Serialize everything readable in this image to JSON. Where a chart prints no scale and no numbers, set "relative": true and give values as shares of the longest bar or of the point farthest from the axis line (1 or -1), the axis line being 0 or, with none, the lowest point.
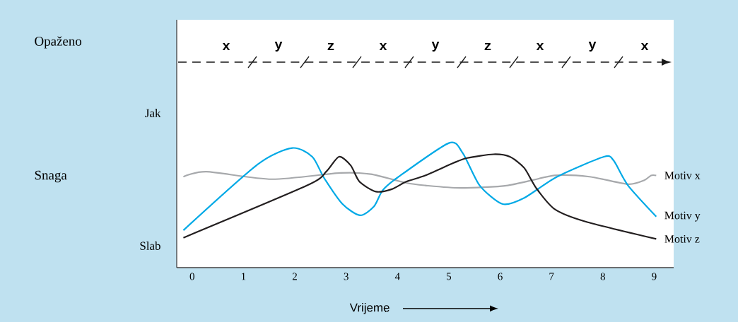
{
  "chart_data": {
    "type": "line",
    "relative": true,
    "xlabel": "Vrijeme",
    "xlim": [
      -0.3,
      9.38
    ],
    "xticks": [
      0,
      1,
      2,
      3,
      4,
      5,
      6,
      7,
      8,
      9
    ],
    "series": [
      {
        "name": "Motiv x",
        "color": "#a7a9ac",
        "x": [
          -0.17,
          0.28,
          1.55,
          2.89,
          3.48,
          4.17,
          4.54,
          5.23,
          6.15,
          7.06,
          7.74,
          8.49,
          8.8,
          8.94,
          9.04
        ],
        "values": [
          0.73,
          0.77,
          0.71,
          0.76,
          0.75,
          0.68,
          0.66,
          0.64,
          0.66,
          0.74,
          0.73,
          0.67,
          0.7,
          0.74,
          0.74
        ]
      },
      {
        "name": "Motiv y",
        "color": "#00a9e6",
        "x": [
          -0.17,
          1.28,
          1.95,
          2.34,
          2.57,
          2.93,
          3.27,
          3.54,
          3.71,
          3.99,
          5.0,
          5.27,
          5.6,
          6.05,
          6.47,
          7.11,
          8.02,
          8.21,
          8.49,
          9.04
        ],
        "values": [
          0.3,
          0.83,
          0.96,
          0.89,
          0.72,
          0.51,
          0.42,
          0.49,
          0.62,
          0.72,
          1.0,
          0.92,
          0.66,
          0.51,
          0.56,
          0.73,
          0.89,
          0.86,
          0.66,
          0.41
        ]
      },
      {
        "name": "Motiv z",
        "color": "#231f20",
        "x": [
          -0.17,
          2.24,
          2.61,
          2.86,
          3.09,
          3.26,
          3.58,
          3.89,
          4.17,
          4.54,
          5.09,
          5.36,
          5.87,
          6.19,
          6.47,
          6.7,
          7.06,
          7.66,
          9.04
        ],
        "values": [
          0.24,
          0.66,
          0.77,
          0.89,
          0.82,
          0.69,
          0.61,
          0.63,
          0.69,
          0.74,
          0.84,
          0.88,
          0.91,
          0.89,
          0.8,
          0.64,
          0.47,
          0.37,
          0.23
        ]
      }
    ],
    "annotations": [
      "Opaženo",
      "Snaga",
      "Jak",
      "Slab",
      "x",
      "y",
      "z",
      "x",
      "y",
      "z",
      "x",
      "y",
      "x"
    ]
  }
}
